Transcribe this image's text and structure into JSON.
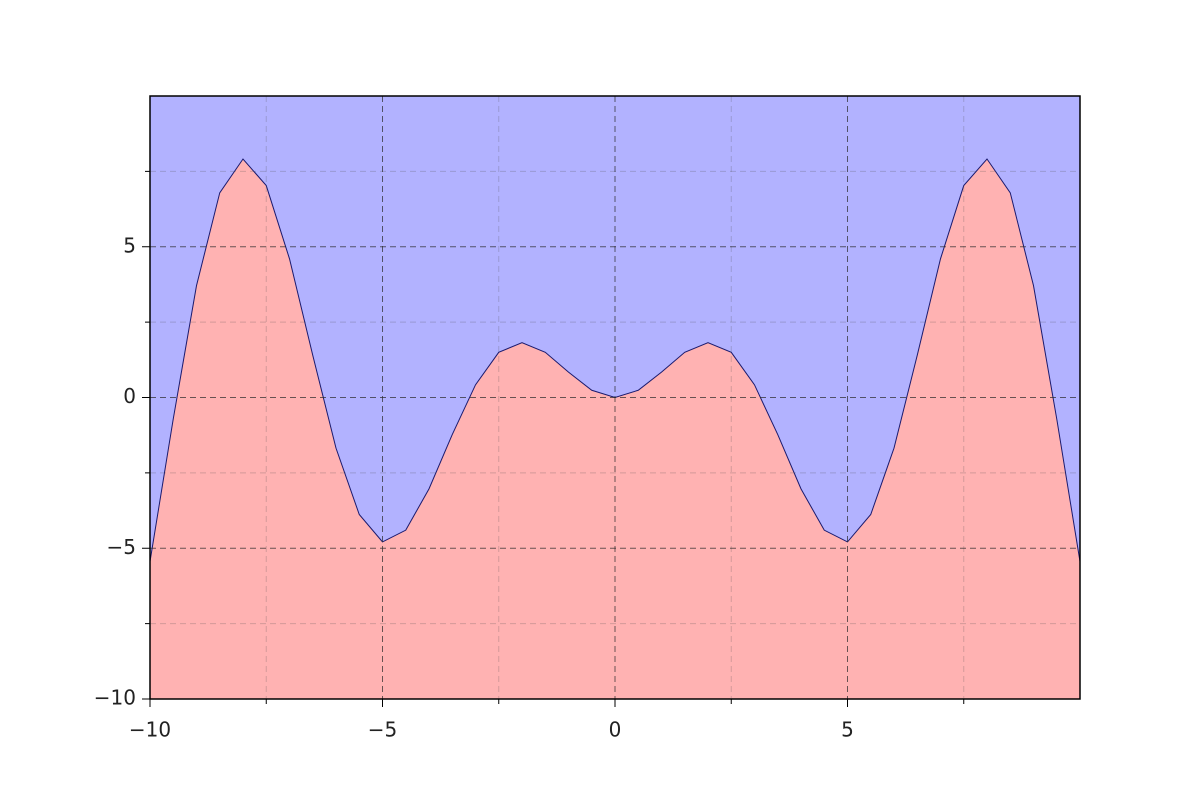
{
  "chart_data": {
    "type": "area",
    "x": [
      -10,
      -9.5,
      -9,
      -8.5,
      -8,
      -7.5,
      -7,
      -6.5,
      -6,
      -5.5,
      -5,
      -4.5,
      -4,
      -3.5,
      -3,
      -2.5,
      -2,
      -1.5,
      -1,
      -0.5,
      0,
      0.5,
      1,
      1.5,
      2,
      2.5,
      3,
      3.5,
      4,
      4.5,
      5,
      5.5,
      6,
      6.5,
      7,
      7.5,
      8,
      8.5,
      9,
      9.5,
      10
    ],
    "values": [
      -5.44,
      -0.71,
      3.71,
      6.79,
      7.91,
      7.03,
      4.6,
      1.4,
      -1.68,
      -3.88,
      -4.79,
      -4.4,
      -3.03,
      -1.23,
      0.42,
      1.5,
      1.82,
      1.5,
      0.84,
      0.24,
      0,
      0.24,
      0.84,
      1.5,
      1.82,
      1.5,
      0.42,
      -1.23,
      -3.03,
      -4.4,
      -4.79,
      -3.88,
      -1.68,
      1.4,
      4.6,
      7.03,
      7.91,
      6.79,
      3.71,
      -0.71,
      -5.44
    ],
    "color_below": "#ffb2b2",
    "color_above": "#b2b2ff",
    "line_color": "#1a1a6e",
    "xlim": [
      -10,
      10
    ],
    "ylim": [
      -10,
      10
    ],
    "xticks": [
      {
        "value": -10,
        "label": "−10"
      },
      {
        "value": -5,
        "label": "−5"
      },
      0,
      5
    ],
    "yticks": [
      {
        "value": -10,
        "label": "−10"
      },
      {
        "value": -5,
        "label": "−5"
      },
      0,
      5
    ],
    "xminorticks": [
      -7.5,
      -2.5,
      2.5,
      7.5
    ],
    "yminorticks": [
      -7.5,
      -2.5,
      2.5,
      7.5
    ],
    "grid": true
  }
}
